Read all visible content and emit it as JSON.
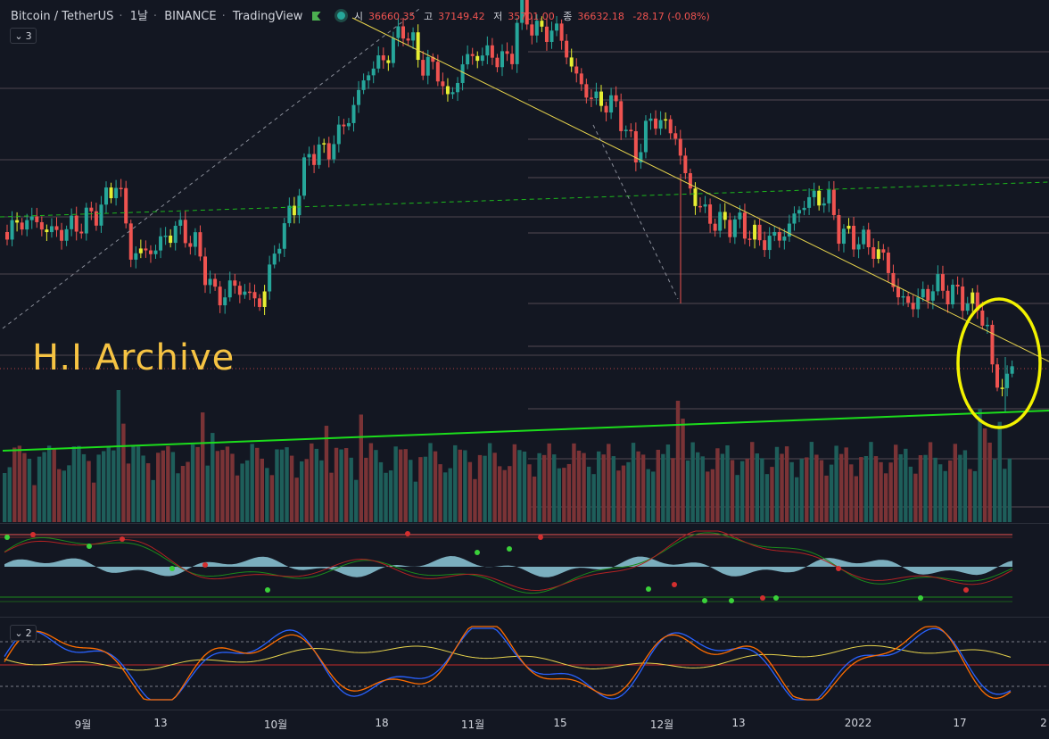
{
  "legend": {
    "symbol": "Bitcoin / TetherUS",
    "interval": "1날",
    "exchange": "BINANCE",
    "source": "TradingView",
    "open_key": "시",
    "open": "36660.35",
    "high_key": "고",
    "high": "37149.42",
    "low_key": "저",
    "low": "35701.00",
    "close_key": "종",
    "close": "36632.18",
    "change": "-28.17 (-0.08%)"
  },
  "panes": {
    "main_toggle": "3",
    "indicator_toggle": "2"
  },
  "watermark": "H.I Archive",
  "xaxis": {
    "labels": [
      "9월",
      "13",
      "10월",
      "18",
      "11월",
      "15",
      "12월",
      "13",
      "2022",
      "17",
      "2"
    ]
  },
  "colors": {
    "background": "#131722",
    "up": "#26a69a",
    "down": "#ef5350",
    "doji_highlight": "#e6ee32",
    "trend_green": "#1cdd1c",
    "trend_yellow": "#e8d44d",
    "hline": "#c9a7a7",
    "stoch_k": "#2962ff",
    "stoch_d": "#ff6d00",
    "stoch_avg": "#e8d44d",
    "circle_highlight": "#f2f200"
  },
  "icons": [
    "chevron-down-icon",
    "flag-icon",
    "status-dot-icon"
  ]
}
